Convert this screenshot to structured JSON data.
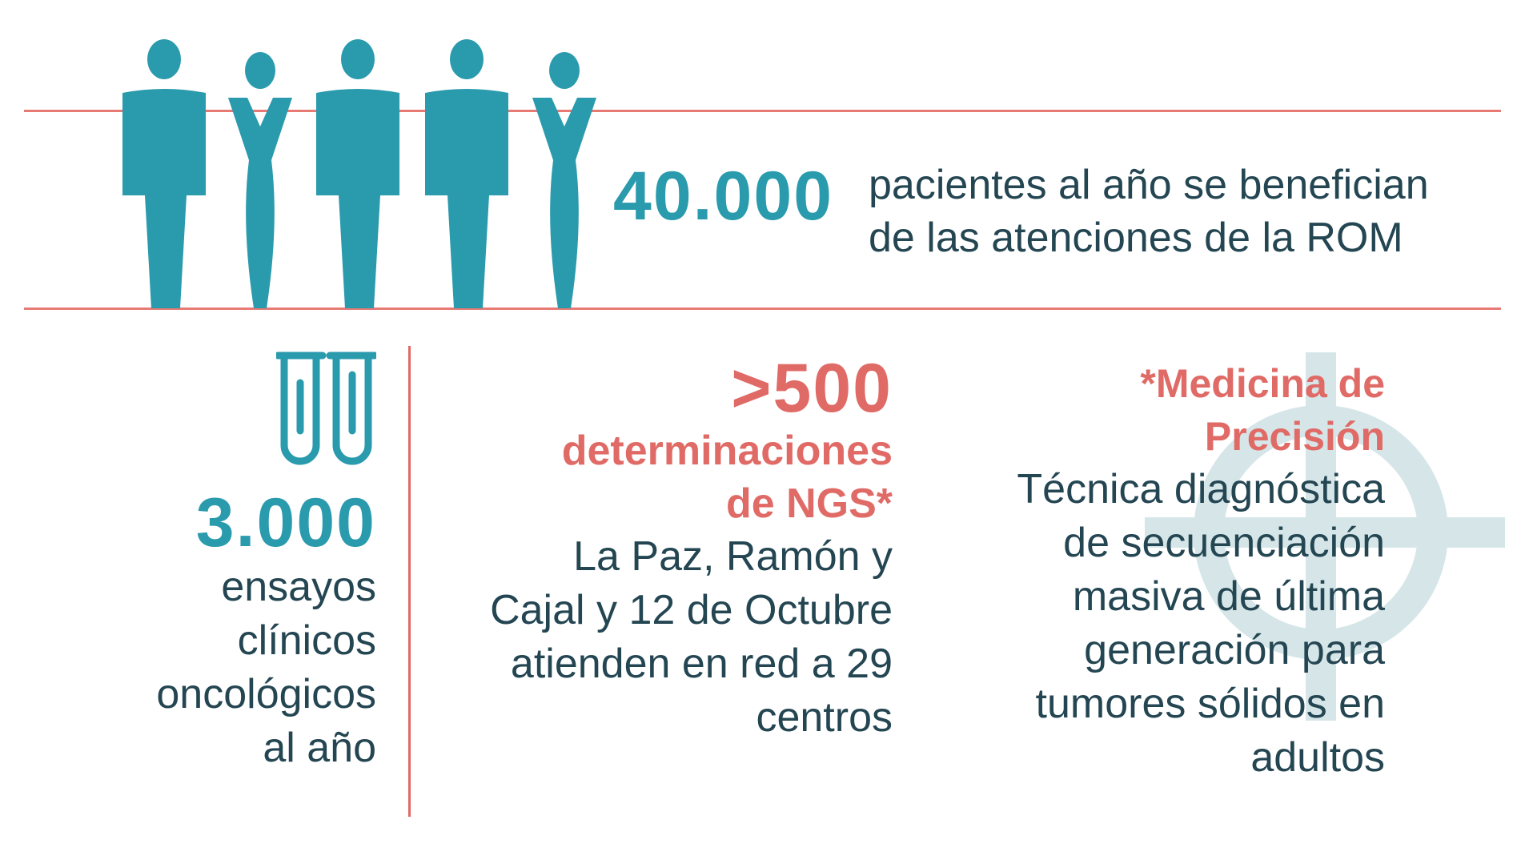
{
  "colors": {
    "teal": "#2a9aad",
    "coral": "#e06a66",
    "navy": "#244652",
    "target": "#d6e6e8"
  },
  "icons": {
    "people": "people-group-icon",
    "tubes": "test-tubes-icon",
    "target": "target-crosshair-icon"
  },
  "top": {
    "number": "40.000",
    "line1": "pacientes al año se benefician",
    "line2": "de las atenciones de la ROM"
  },
  "trials": {
    "number": "3.000",
    "lines": [
      "ensayos",
      "clínicos",
      "oncológicos",
      "al año"
    ]
  },
  "ngs": {
    "number": ">500",
    "highlight": [
      "determinaciones",
      "de NGS*"
    ],
    "lines": [
      "La Paz, Ramón y",
      "Cajal y 12 de Octubre",
      "atienden en red a 29",
      "centros"
    ]
  },
  "precision": {
    "highlight": [
      "*Medicina de",
      "Precisión"
    ],
    "lines": [
      "Técnica diagnóstica",
      "de secuenciación",
      "masiva de última",
      "generación para",
      "tumores sólidos en",
      "adultos"
    ]
  }
}
